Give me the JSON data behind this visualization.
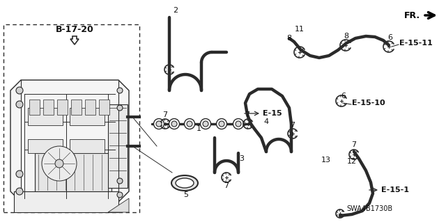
{
  "bg_color": "#ffffff",
  "line_color": "#2a2a2a",
  "text_color": "#111111",
  "hose_lw": 3.2,
  "clamp_lw": 1.0,
  "figsize": [
    6.4,
    3.19
  ],
  "dpi": 100,
  "labels": {
    "B1720": "B-17-20",
    "E15": "E-15",
    "E1510": "E-15-10",
    "E1511": "E-15-11",
    "E151": "E-15-1",
    "SWA": "SWA4B1730B",
    "FR": "FR.",
    "nums": [
      "2",
      "1",
      "3",
      "4",
      "5",
      "6",
      "6",
      "7",
      "7",
      "7",
      "7",
      "7",
      "7",
      "8",
      "8",
      "11",
      "12",
      "13"
    ]
  }
}
